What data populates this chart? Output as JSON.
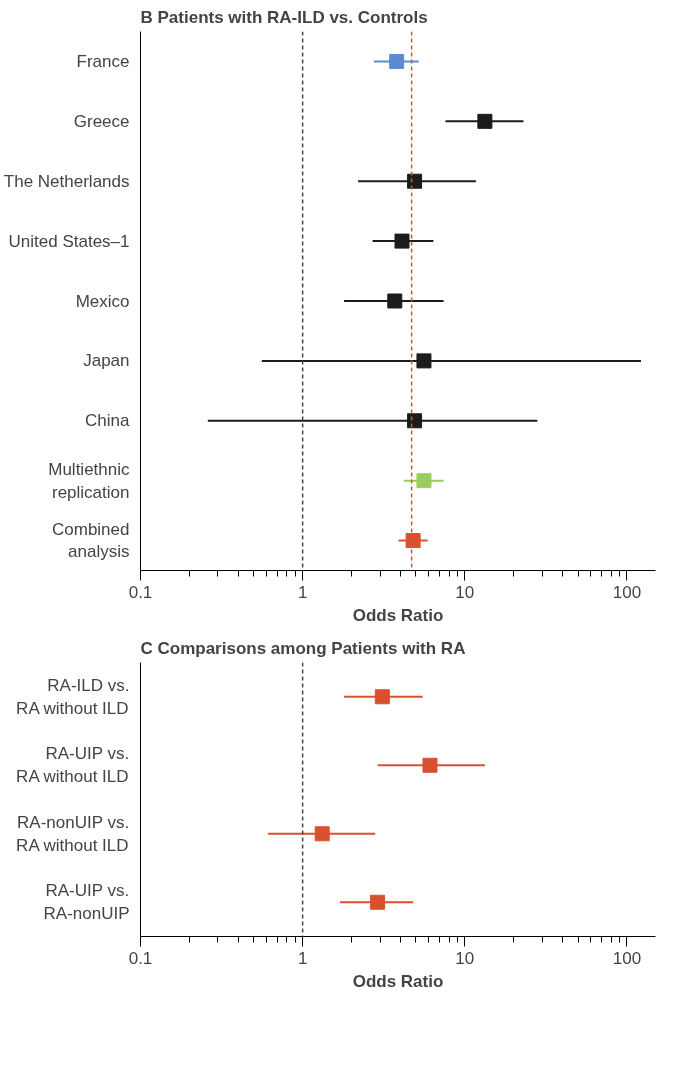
{
  "chart_data": [
    {
      "type": "scatter",
      "title": "B  Patients with RA-ILD vs. Controls",
      "xlabel": "Odds Ratio",
      "orientation": "horizontal",
      "log": "x",
      "marker": "square",
      "categories": [
        "France",
        "Greece",
        "The Netherlands",
        "United States–1",
        "Mexico",
        "Japan",
        "China",
        "Multiethnic\nreplication",
        "Combined\nanalysis"
      ],
      "values": [
        3.8,
        13.3,
        4.9,
        4.1,
        3.7,
        5.6,
        4.9,
        5.6,
        4.8
      ],
      "errors": [
        [
          2.75,
          5.2
        ],
        [
          7.6,
          23
        ],
        [
          2.2,
          11.7
        ],
        [
          2.7,
          6.4
        ],
        [
          1.8,
          7.4
        ],
        [
          0.56,
          122
        ],
        [
          0.26,
          28
        ],
        [
          4.2,
          7.4
        ],
        [
          3.9,
          5.9
        ]
      ],
      "colors": [
        "#5b8bd0",
        "#1c1c1c",
        "#1c1c1c",
        "#1c1c1c",
        "#1c1c1c",
        "#1c1c1c",
        "#1c1c1c",
        "#9acd5e",
        "#d9502f"
      ],
      "xlim": [
        0.1,
        150
      ],
      "xticks": [
        0.1,
        1,
        10,
        100
      ],
      "ref_lines": [
        {
          "axis": "x",
          "value": 1,
          "color": "#444444",
          "line_style": "dashed"
        },
        {
          "axis": "x",
          "value": 4.7,
          "color": "#d9502f",
          "line_style": "dashed"
        }
      ]
    },
    {
      "type": "scatter",
      "title": "C  Comparisons among Patients with RA",
      "xlabel": "Odds Ratio",
      "orientation": "horizontal",
      "log": "x",
      "marker": "square",
      "categories": [
        "RA-ILD vs.\nRA without ILD",
        "RA-UIP vs.\nRA without ILD",
        "RA-nonUIP vs.\nRA without ILD",
        "RA-UIP vs.\nRA-nonUIP"
      ],
      "values": [
        3.1,
        6.1,
        1.32,
        2.9
      ],
      "errors": [
        [
          1.8,
          5.5
        ],
        [
          2.9,
          13.3
        ],
        [
          0.61,
          2.8
        ],
        [
          1.7,
          4.8
        ]
      ],
      "colors": [
        "#d9502f",
        "#d9502f",
        "#d9502f",
        "#d9502f"
      ],
      "xlim": [
        0.1,
        150
      ],
      "xticks": [
        0.1,
        1,
        10,
        100
      ],
      "ref_lines": [
        {
          "axis": "x",
          "value": 1,
          "color": "#444444",
          "line_style": "dashed"
        }
      ]
    }
  ]
}
